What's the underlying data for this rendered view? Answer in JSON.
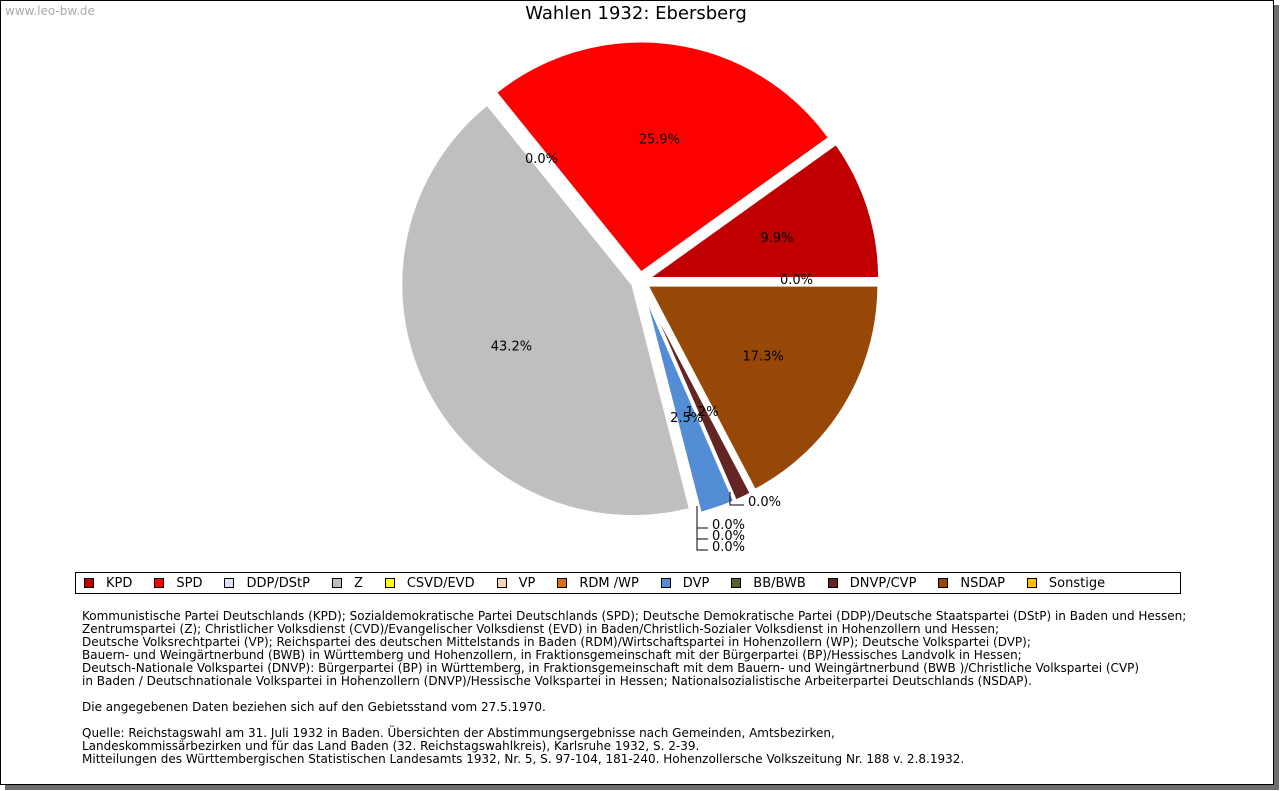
{
  "watermark": "www.leo-bw.de",
  "chart_data": {
    "type": "pie",
    "title": "Wahlen 1932: Ebersberg",
    "slices": [
      {
        "name": "KPD",
        "value": 9.9,
        "label": "9.9%",
        "color": "#c00000"
      },
      {
        "name": "SPD",
        "value": 25.9,
        "label": "25.9%",
        "color": "#ff0000"
      },
      {
        "name": "DDP/DStP",
        "value": 0.0,
        "label": "0.0%",
        "color": "#d9e1f2"
      },
      {
        "name": "Z",
        "value": 43.2,
        "label": "43.2%",
        "color": "#bfbfbf"
      },
      {
        "name": "CSVD/EVD",
        "value": 0.0,
        "label": "0.0%",
        "color": "#ffff00"
      },
      {
        "name": "VP",
        "value": 0.0,
        "label": "0.0%",
        "color": "#fbd4b4"
      },
      {
        "name": "RDM /WP",
        "value": 0.0,
        "label": "0.0%",
        "color": "#e36c0a"
      },
      {
        "name": "DVP",
        "value": 2.5,
        "label": "2.5%",
        "color": "#538dd5"
      },
      {
        "name": "BB/BWB",
        "value": 0.0,
        "label": "0.0%",
        "color": "#4f6228"
      },
      {
        "name": "DNVP/CVP",
        "value": 1.2,
        "label": "1.2%",
        "color": "#632523"
      },
      {
        "name": "NSDAP",
        "value": 17.3,
        "label": "17.3%",
        "color": "#974706"
      },
      {
        "name": "Sonstige",
        "value": 0.0,
        "label": "0.0%",
        "color": "#ffc000"
      }
    ],
    "legend_position": "bottom"
  },
  "notes": {
    "parties": "Kommunistische Partei Deutschlands (KPD); Sozialdemokratische Partei Deutschlands (SPD); Deutsche Demokratische Partei (DDP)/Deutsche Staatspartei (DStP) in Baden und Hessen;\nZentrumspartei (Z); Christlicher Volksdienst (CVD)/Evangelischer Volksdienst (EVD) in Baden/Christlich-Sozialer Volksdienst in Hohenzollern und Hessen;\nDeutsche Volksrechtpartei (VP); Reichspartei des deutschen Mittelstands in Baden (RDM)/Wirtschaftspartei in Hohenzollern (WP); Deutsche Volkspartei (DVP);\nBauern- und Weingärtnerbund (BWB) in Württemberg und Hohenzollern, in Fraktionsgemeinschaft mit der Bürgerpartei (BP)/Hessisches Landvolk in Hessen;\nDeutsch-Nationale Volkspartei (DNVP): Bürgerpartei (BP) in Württemberg, in Fraktionsgemeinschaft mit dem Bauern- und Weingärtnerbund (BWB )/Christliche Volkspartei (CVP)\nin Baden / Deutschnationale Volkspartei in Hohenzollern (DNVP)/Hessische Volkspartei in Hessen; Nationalsozialistische Arbeiterpartei Deutschlands (NSDAP).",
    "gebiet": "Die angegebenen Daten beziehen sich auf den Gebietsstand vom 27.5.1970.",
    "quelle": "Quelle: Reichstagswahl am 31. Juli 1932 in Baden. Übersichten der Abstimmungsergebnisse nach Gemeinden, Amtsbezirken,\nLandeskommissärbezirken und für das Land Baden (32. Reichstagswahlkreis), Karlsruhe 1932, S. 2-39.\nMitteilungen des Württembergischen Statistischen Landesamts 1932, Nr. 5, S. 97-104, 181-240. Hohenzollersche Volkszeitung Nr. 188 v. 2.8.1932."
  }
}
